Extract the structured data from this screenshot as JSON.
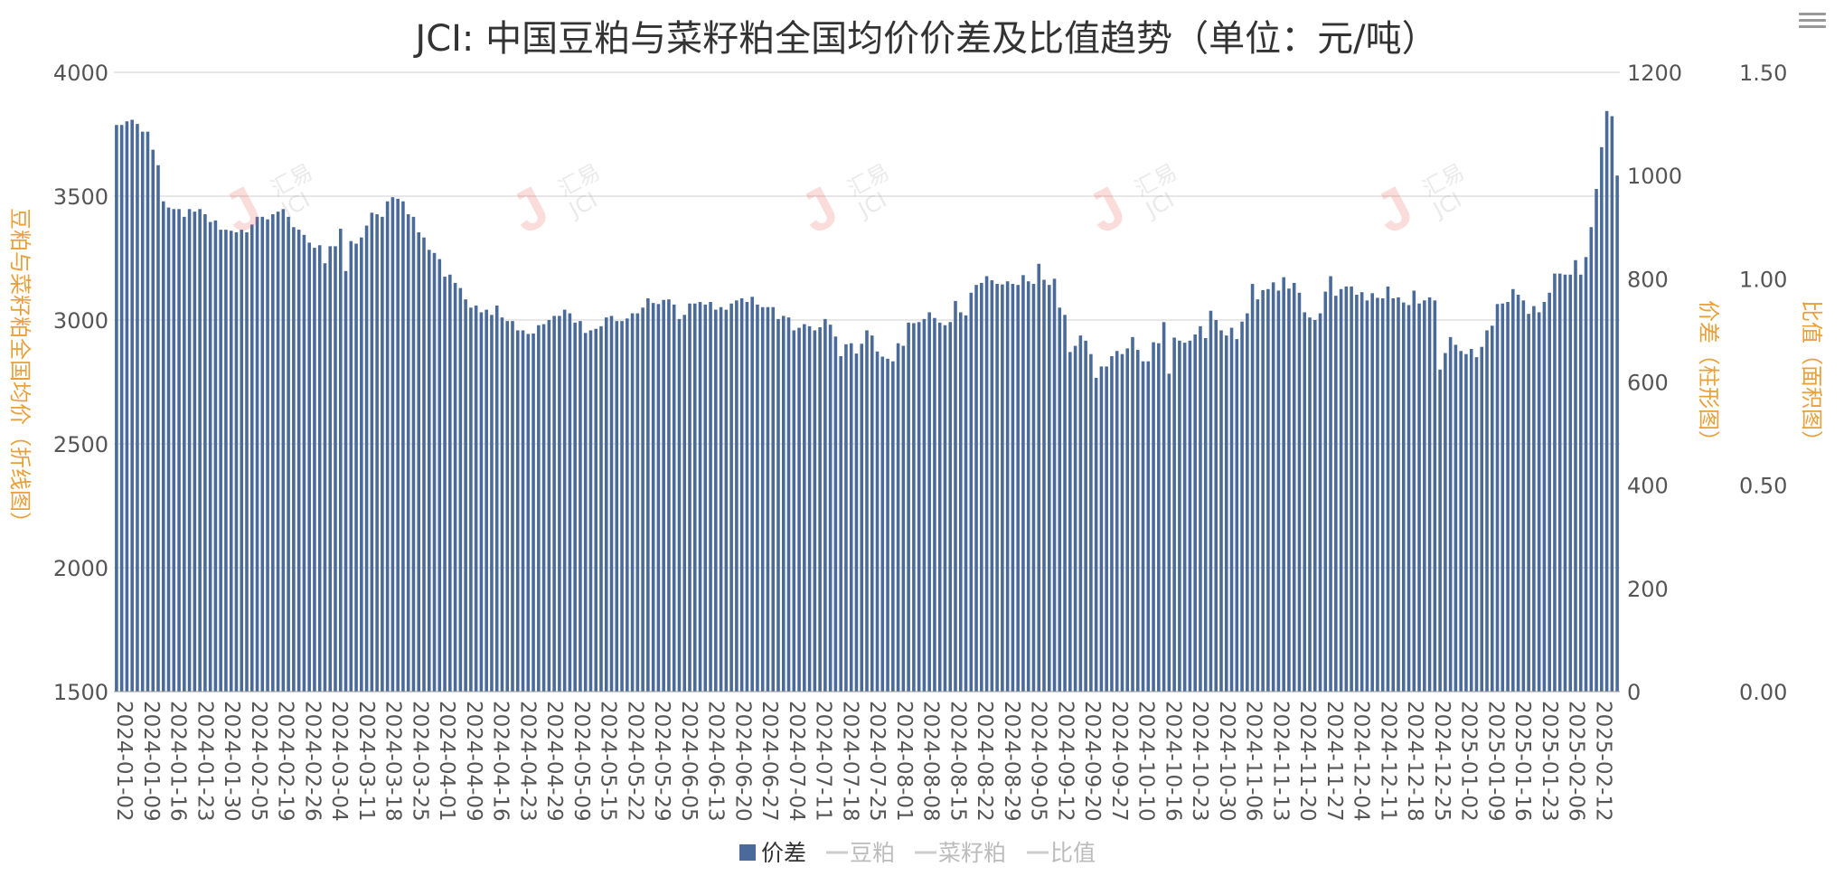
{
  "chart_data": {
    "type": "bar",
    "title": "JCI: 中国豆粕与菜籽粕全国均价价差及比值趋势（单位：元/吨）",
    "y_left_label": "豆粕与菜籽粕全国均价（折线图）",
    "y_right_label": "价差（柱形图）",
    "y_ratio_label": "比值（面积图）",
    "y_left_ticks": [
      "1500",
      "2000",
      "2500",
      "3000",
      "3500",
      "4000"
    ],
    "y_right_ticks": [
      "0",
      "200",
      "400",
      "600",
      "800",
      "1000",
      "1200"
    ],
    "y_ratio_ticks": [
      "0.00",
      "0.50",
      "1.00",
      "1.50"
    ],
    "ylim_left": [
      1500,
      4000
    ],
    "ylim_right": [
      0,
      1200
    ],
    "ylim_ratio": [
      0,
      1.5
    ],
    "x_tick_labels": [
      "2024-01-02",
      "2024-01-09",
      "2024-01-16",
      "2024-01-23",
      "2024-01-30",
      "2024-02-05",
      "2024-02-19",
      "2024-02-26",
      "2024-03-04",
      "2024-03-11",
      "2024-03-18",
      "2024-03-25",
      "2024-04-01",
      "2024-04-09",
      "2024-04-16",
      "2024-04-23",
      "2024-04-29",
      "2024-05-09",
      "2024-05-15",
      "2024-05-22",
      "2024-05-29",
      "2024-06-05",
      "2024-06-13",
      "2024-06-20",
      "2024-06-27",
      "2024-07-04",
      "2024-07-11",
      "2024-07-18",
      "2024-07-25",
      "2024-08-01",
      "2024-08-08",
      "2024-08-15",
      "2024-08-22",
      "2024-08-29",
      "2024-09-05",
      "2024-09-12",
      "2024-09-20",
      "2024-09-27",
      "2024-10-10",
      "2024-10-16",
      "2024-10-23",
      "2024-10-30",
      "2024-11-06",
      "2024-11-13",
      "2024-11-20",
      "2024-11-27",
      "2024-12-04",
      "2024-12-11",
      "2024-12-18",
      "2024-12-25",
      "2025-01-02",
      "2025-01-09",
      "2025-01-16",
      "2025-01-23",
      "2025-02-06",
      "2025-02-12"
    ],
    "legend": [
      {
        "name": "价差",
        "color": "#4a6a9a",
        "active": true
      },
      {
        "name": "豆粕",
        "color": "#cccccc",
        "active": false
      },
      {
        "name": "菜籽粕",
        "color": "#cccccc",
        "active": false
      },
      {
        "name": "比值",
        "color": "#cccccc",
        "active": false
      }
    ],
    "legend_position": "bottom-center",
    "grid": true,
    "series": [
      {
        "name": "价差",
        "color": "#4a6a9a",
        "values": [
          1098,
          1098,
          1105,
          1108,
          1100,
          1085,
          1085,
          1050,
          1020,
          950,
          938,
          935,
          935,
          920,
          935,
          930,
          935,
          925,
          910,
          913,
          895,
          895,
          893,
          890,
          895,
          890,
          905,
          920,
          920,
          915,
          925,
          930,
          935,
          920,
          900,
          895,
          885,
          870,
          860,
          865,
          830,
          863,
          863,
          897,
          815,
          873,
          868,
          880,
          903,
          928,
          925,
          920,
          950,
          958,
          955,
          950,
          925,
          920,
          890,
          880,
          856,
          850,
          838,
          804,
          808,
          792,
          782,
          760,
          744,
          748,
          735,
          740,
          730,
          748,
          725,
          718,
          718,
          700,
          700,
          693,
          694,
          710,
          712,
          720,
          728,
          728,
          740,
          733,
          715,
          718,
          695,
          700,
          703,
          708,
          725,
          728,
          718,
          718,
          723,
          733,
          733,
          744,
          762,
          753,
          751,
          759,
          760,
          750,
          722,
          730,
          752,
          752,
          755,
          750,
          755,
          740,
          745,
          740,
          752,
          758,
          762,
          755,
          765,
          750,
          745,
          745,
          745,
          722,
          728,
          725,
          700,
          705,
          712,
          708,
          700,
          706,
          722,
          711,
          688,
          650,
          673,
          675,
          655,
          674,
          700,
          690,
          659,
          649,
          645,
          640,
          675,
          670,
          715,
          714,
          716,
          722,
          735,
          724,
          715,
          710,
          716,
          757,
          735,
          729,
          773,
          788,
          792,
          805,
          797,
          790,
          789,
          795,
          790,
          788,
          807,
          795,
          790,
          829,
          798,
          788,
          800,
          744,
          730,
          658,
          670,
          690,
          680,
          654,
          608,
          630,
          630,
          650,
          660,
          654,
          665,
          687,
          662,
          640,
          640,
          677,
          675,
          716,
          616,
          686,
          680,
          676,
          680,
          692,
          708,
          685,
          738,
          720,
          700,
          690,
          705,
          683,
          717,
          733,
          790,
          760,
          778,
          780,
          793,
          777,
          803,
          781,
          792,
          773,
          735,
          725,
          720,
          733,
          775,
          805,
          767,
          780,
          785,
          785,
          769,
          774,
          758,
          772,
          763,
          762,
          785,
          762,
          764,
          754,
          749,
          777,
          752,
          758,
          764,
          758,
          624,
          656,
          687,
          672,
          660,
          654,
          664,
          648,
          668,
          700,
          709,
          751,
          752,
          755,
          780,
          769,
          758,
          732,
          747,
          735,
          755,
          773,
          810,
          810,
          808,
          808,
          836,
          808,
          842,
          900,
          974,
          1055,
          1125,
          1115,
          1000
        ]
      }
    ]
  },
  "watermark_text": "汇易 JCI"
}
